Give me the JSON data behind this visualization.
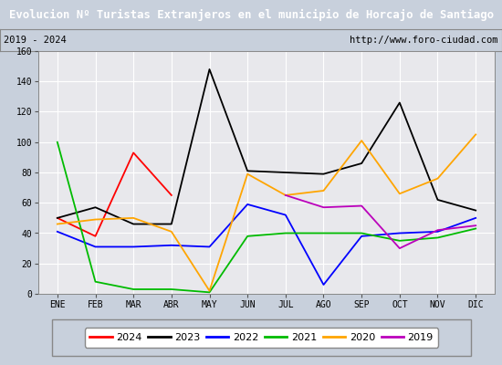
{
  "title": "Evolucion Nº Turistas Extranjeros en el municipio de Horcajo de Santiago",
  "subtitle_left": "2019 - 2024",
  "subtitle_right": "http://www.foro-ciudad.com",
  "months": [
    "ENE",
    "FEB",
    "MAR",
    "ABR",
    "MAY",
    "JUN",
    "JUL",
    "AGO",
    "SEP",
    "OCT",
    "NOV",
    "DIC"
  ],
  "series": {
    "2024": [
      50,
      38,
      93,
      65,
      null,
      null,
      null,
      null,
      null,
      null,
      null,
      null
    ],
    "2023": [
      50,
      57,
      46,
      46,
      148,
      81,
      80,
      79,
      86,
      126,
      62,
      55
    ],
    "2022": [
      41,
      31,
      31,
      32,
      31,
      59,
      52,
      6,
      38,
      40,
      41,
      50
    ],
    "2021": [
      100,
      8,
      3,
      3,
      1,
      38,
      40,
      40,
      40,
      35,
      37,
      43
    ],
    "2020": [
      46,
      49,
      50,
      41,
      2,
      79,
      65,
      68,
      101,
      66,
      76,
      105
    ],
    "2019": [
      null,
      null,
      null,
      null,
      null,
      null,
      65,
      57,
      58,
      30,
      42,
      45
    ]
  },
  "colors": {
    "2024": "#ff0000",
    "2023": "#000000",
    "2022": "#0000ff",
    "2021": "#00bb00",
    "2020": "#ffa500",
    "2019": "#bb00bb"
  },
  "ylim": [
    0,
    160
  ],
  "yticks": [
    0,
    20,
    40,
    60,
    80,
    100,
    120,
    140,
    160
  ],
  "title_bg": "#4a8fd4",
  "title_color": "#ffffff",
  "plot_bg": "#e8e8ec",
  "outer_bg": "#c8d0dc",
  "box_bg": "#ffffff",
  "grid_color": "#ffffff",
  "legend_years": [
    "2024",
    "2023",
    "2022",
    "2021",
    "2020",
    "2019"
  ]
}
